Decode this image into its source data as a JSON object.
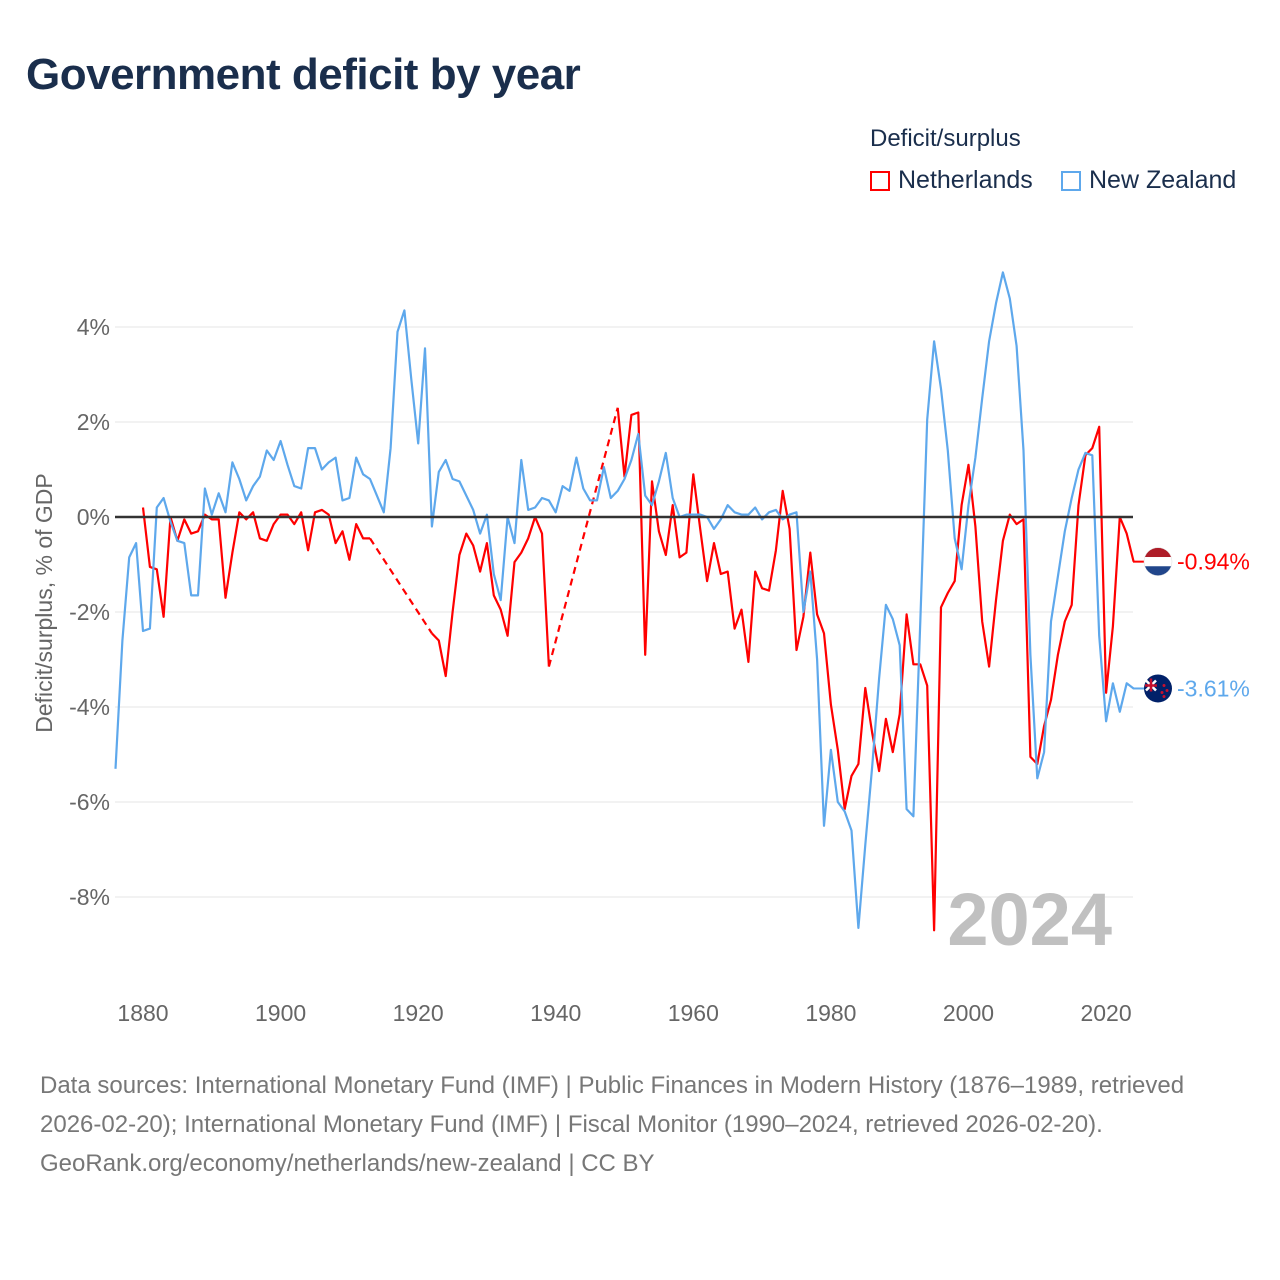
{
  "title": "Government deficit by year",
  "legend": {
    "title": "Deficit/surplus",
    "items": [
      "Netherlands",
      "New Zealand"
    ]
  },
  "footer": {
    "sources": "Data sources: International Monetary Fund (IMF) | Public Finances in Modern History (1876–1989, retrieved 2026-02-20); International Monetary Fund (IMF) | Fiscal Monitor (1990–2024, retrieved 2026-02-20).",
    "attribution": "GeoRank.org/economy/netherlands/new-zealand | CC BY"
  },
  "colors": {
    "netherlands": "#ff0000",
    "new_zealand": "#5ea8ec",
    "zero": "#333333",
    "grid": "#e6e6e6",
    "watermark": "#c0c0c0"
  },
  "chart_data": {
    "type": "line",
    "title": "Government deficit by year",
    "xlabel": "",
    "ylabel": "Deficit/surplus, % of GDP",
    "xlim": [
      1876,
      2024
    ],
    "ylim": [
      -10,
      5.5
    ],
    "x_ticks": [
      1880,
      1900,
      1920,
      1940,
      1960,
      1980,
      2000,
      2020
    ],
    "y_ticks": [
      4,
      2,
      0,
      -2,
      -4,
      -6,
      -8
    ],
    "y_tick_labels": [
      "4%",
      "2%",
      "0%",
      "-2%",
      "-4%",
      "-6%",
      "-8%"
    ],
    "watermark_year": "2024",
    "grid": true,
    "legend_position": "top-right",
    "series": [
      {
        "name": "Netherlands",
        "start_year": 1880,
        "end_label": "-0.94%",
        "flag_icon": "netherlands-flag-icon",
        "values": [
          0.2,
          -1.05,
          -1.1,
          -2.1,
          0.0,
          -0.5,
          -0.05,
          -0.35,
          -0.3,
          0.05,
          -0.05,
          -0.05,
          -1.7,
          -0.75,
          0.1,
          -0.05,
          0.1,
          -0.45,
          -0.5,
          -0.15,
          0.05,
          0.05,
          -0.15,
          0.1,
          -0.7,
          0.1,
          0.15,
          0.05,
          -0.55,
          -0.3,
          -0.9,
          -0.15,
          -0.45,
          -0.45,
          null,
          null,
          null,
          null,
          null,
          null,
          null,
          null,
          -2.45,
          -2.6,
          -3.35,
          -2.0,
          -0.8,
          -0.35,
          -0.6,
          -1.15,
          -0.55,
          -1.65,
          -1.95,
          -2.5,
          -0.95,
          -0.75,
          -0.45,
          0.0,
          -0.35,
          -3.15,
          null,
          null,
          null,
          null,
          null,
          null,
          null,
          null,
          null,
          2.3,
          0.85,
          2.15,
          2.2,
          -2.9,
          0.75,
          -0.3,
          -0.8,
          0.25,
          -0.85,
          -0.75,
          0.9,
          -0.25,
          -1.35,
          -0.55,
          -1.2,
          -1.15,
          -2.35,
          -1.95,
          -3.05,
          -1.15,
          -1.5,
          -1.55,
          -0.7,
          0.55,
          -0.25,
          -2.8,
          -2.1,
          -0.75,
          -2.05,
          -2.45,
          -3.95,
          -4.9,
          -6.15,
          -5.45,
          -5.2,
          -3.6,
          -4.55,
          -5.35,
          -4.25,
          -4.95,
          -4.15,
          -2.05,
          -3.1,
          -3.1,
          -3.55,
          -8.7,
          -1.9,
          -1.6,
          -1.35,
          0.25,
          1.1,
          -0.2,
          -2.2,
          -3.15,
          -1.75,
          -0.5,
          0.05,
          -0.15,
          -0.05,
          -5.05,
          -5.2,
          -4.4,
          -3.85,
          -2.9,
          -2.2,
          -1.85,
          0.25,
          1.3,
          1.45,
          1.9,
          -3.7,
          -2.3,
          0.0,
          -0.35,
          -0.94
        ]
      },
      {
        "name": "New Zealand",
        "start_year": 1876,
        "end_label": "-3.61%",
        "flag_icon": "new-zealand-flag-icon",
        "values": [
          -5.3,
          -2.6,
          -0.85,
          -0.55,
          -2.4,
          -2.35,
          0.2,
          0.4,
          -0.1,
          -0.5,
          -0.55,
          -1.65,
          -1.65,
          0.6,
          0.05,
          0.5,
          0.1,
          1.15,
          0.8,
          0.35,
          0.65,
          0.85,
          1.4,
          1.2,
          1.6,
          1.1,
          0.65,
          0.6,
          1.45,
          1.45,
          1.0,
          1.15,
          1.25,
          0.35,
          0.4,
          1.25,
          0.9,
          0.8,
          0.45,
          0.1,
          1.45,
          3.9,
          4.35,
          2.9,
          1.55,
          3.55,
          -0.2,
          0.95,
          1.2,
          0.8,
          0.75,
          0.45,
          0.15,
          -0.35,
          0.05,
          -1.2,
          -1.75,
          0.0,
          -0.55,
          1.2,
          0.15,
          0.2,
          0.4,
          0.35,
          0.1,
          0.65,
          0.55,
          1.25,
          0.6,
          0.35,
          0.35,
          1.05,
          0.4,
          0.55,
          0.8,
          1.2,
          1.75,
          0.45,
          0.25,
          0.75,
          1.35,
          0.4,
          0.0,
          0.05,
          0.05,
          0.05,
          0.0,
          -0.25,
          -0.05,
          0.25,
          0.1,
          0.05,
          0.05,
          0.2,
          -0.05,
          0.1,
          0.15,
          -0.05,
          0.05,
          0.1,
          -2.0,
          -1.15,
          -3.0,
          -6.5,
          -4.9,
          -6.0,
          -6.2,
          -6.6,
          -8.65,
          -6.9,
          -5.25,
          -3.4,
          -1.85,
          -2.15,
          -2.7,
          -6.15,
          -6.3,
          -2.2,
          2.05,
          3.7,
          2.7,
          1.4,
          -0.45,
          -1.1,
          0.25,
          1.25,
          2.5,
          3.7,
          4.5,
          5.15,
          4.6,
          3.6,
          1.4,
          -2.9,
          -5.5,
          -4.95,
          -2.2,
          -1.25,
          -0.3,
          0.4,
          1.0,
          1.35,
          1.3,
          -2.5,
          -4.3,
          -3.5,
          -4.1,
          -3.5,
          -3.61
        ]
      }
    ]
  }
}
